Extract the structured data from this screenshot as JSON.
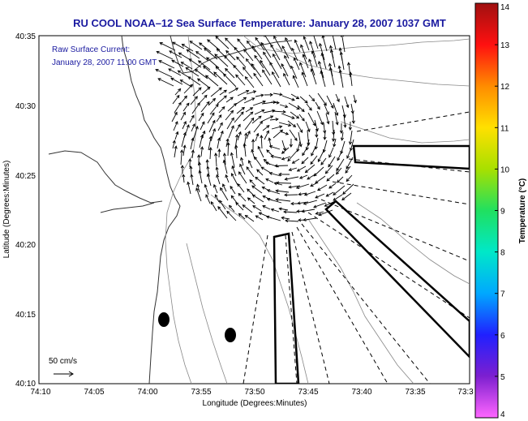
{
  "title": "RU COOL  NOAA–12  Sea Surface Temperature:  January 28, 2007 1037 GMT",
  "annotation": {
    "line1": "Raw Surface Current:",
    "line2": "January 28, 2007 11:00 GMT"
  },
  "scale_label": "50 cm/s",
  "x_axis": {
    "label": "Longitude (Degrees:Minutes)",
    "ticks": [
      "74:10",
      "74:05",
      "74:00",
      "73:55",
      "73:50",
      "73:45",
      "73:40",
      "73:35",
      "73:3"
    ]
  },
  "y_axis": {
    "label": "Latitude (Degrees:Minutes)",
    "ticks": [
      "40:35",
      "40:30",
      "40:25",
      "40:20",
      "40:15",
      "40:10"
    ]
  },
  "colorbar": {
    "label": "Temperature (°C)",
    "ticks": [
      "14",
      "13",
      "12",
      "11",
      "10",
      "9",
      "8",
      "7",
      "6",
      "5",
      "4"
    ],
    "range": [
      4,
      14
    ],
    "colors": [
      "#ff66ff",
      "#7d1fd0",
      "#2020ff",
      "#00a8ff",
      "#00e8c8",
      "#20e060",
      "#a8e000",
      "#ffe000",
      "#ff8c00",
      "#ff1010",
      "#a01010"
    ]
  }
}
